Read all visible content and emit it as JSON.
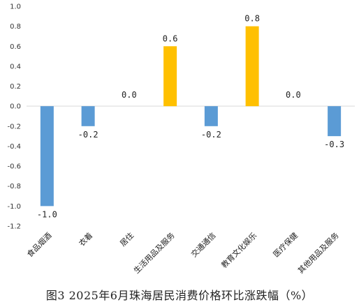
{
  "chart_data": {
    "type": "bar",
    "title": "图3 2025年6月珠海居民消费价格环比涨跌幅（%）",
    "categories": [
      "食品烟酒",
      "衣着",
      "居住",
      "生活用品及服务",
      "交通通信",
      "教育文化娱乐",
      "医疗保健",
      "其他用品及服务"
    ],
    "values": [
      -1.0,
      -0.2,
      0.0,
      0.6,
      -0.2,
      0.8,
      0.0,
      -0.3
    ],
    "value_labels": [
      "-1.0",
      "-0.2",
      "0.0",
      "0.6",
      "-0.2",
      "0.8",
      "0.0",
      "-0.3"
    ],
    "ylim": [
      -1.2,
      1.0
    ],
    "yticks": [
      "1.0",
      "0.8",
      "0.6",
      "0.4",
      "0.2",
      "0.0",
      "-0.2",
      "-0.4",
      "-0.6",
      "-0.8",
      "-1.0",
      "-1.2"
    ],
    "ytick_values": [
      1.0,
      0.8,
      0.6,
      0.4,
      0.2,
      0.0,
      -0.2,
      -0.4,
      -0.6,
      -0.8,
      -1.0,
      -1.2
    ],
    "grid": false,
    "colors": {
      "negative": "#5b9bd5",
      "positive": "#ffc000",
      "axis": "#d9d9d9"
    }
  }
}
